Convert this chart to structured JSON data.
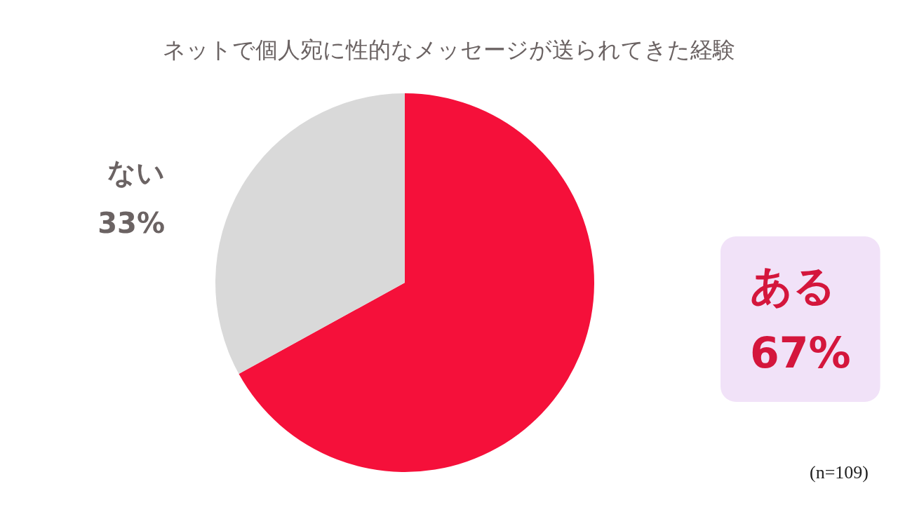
{
  "chart_data": {
    "type": "pie",
    "title": "ネットで個人宛に性的なメッセージが送られてきた経験",
    "categories": [
      "ある",
      "ない"
    ],
    "values": [
      67,
      33
    ],
    "colors": [
      "#f5103a",
      "#d9d9d9"
    ],
    "value_labels": [
      "67%",
      "33%"
    ],
    "annotations": [
      "(n=109)"
    ],
    "legend": false
  }
}
